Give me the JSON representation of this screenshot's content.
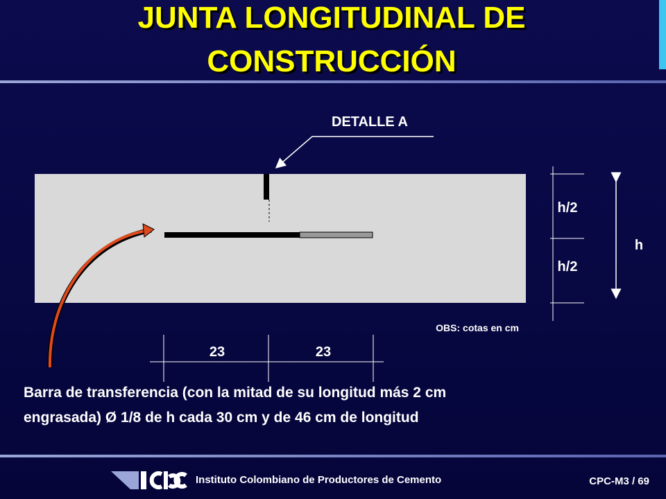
{
  "title": {
    "line1": "JUNTA LONGITUDINAL DE",
    "line2": "CONSTRUCCIÓN"
  },
  "diagram": {
    "detail_label": "DETALLE A",
    "dims": {
      "upper_half": "h/2",
      "lower_half": "h/2",
      "total": "h",
      "left_span": "23",
      "right_span": "23"
    },
    "note": "OBS: cotas en cm"
  },
  "caption": {
    "line1": "Barra de transferencia (con la mitad de su longitud más 2 cm",
    "line2": "engrasada) Ø 1/8 de h cada 30 cm y de 46 cm de longitud"
  },
  "footer": {
    "institute": "Instituto Colombiano de Productores de Cemento",
    "slide_id": "CPC-M3 /  69"
  }
}
